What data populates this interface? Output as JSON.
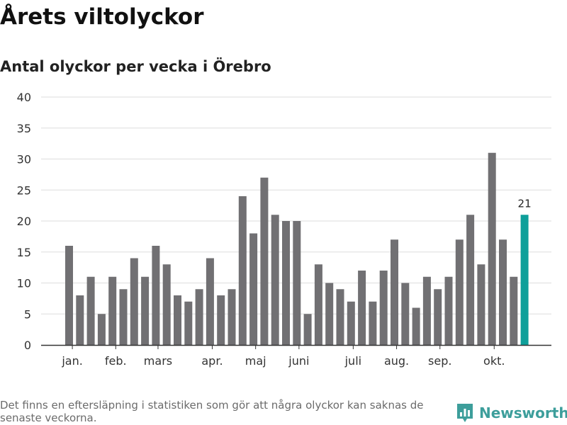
{
  "header": {
    "title": "Årets viltolyckor",
    "subtitle": "Antal olyckor per vecka i Örebro"
  },
  "footer": {
    "note": "Det finns en eftersläpning i statistiken som gör att några olyckor kan saknas de senaste veckorna.",
    "brand": "Newsworthy"
  },
  "colors": {
    "bar": "#717073",
    "highlight": "#0e9f9a",
    "grid": "#dddddd",
    "axis": "#333333",
    "brand": "#3d9e9b"
  },
  "chart_data": {
    "type": "bar",
    "title": "Antal olyckor per vecka i Örebro",
    "xlabel": "",
    "ylabel": "",
    "ylim": [
      0,
      40
    ],
    "yticks": [
      0,
      5,
      10,
      15,
      20,
      25,
      30,
      35,
      40
    ],
    "grid": true,
    "values": [
      16,
      8,
      11,
      5,
      11,
      9,
      14,
      11,
      16,
      13,
      8,
      7,
      9,
      14,
      8,
      9,
      24,
      18,
      27,
      21,
      20,
      20,
      5,
      13,
      10,
      9,
      7,
      12,
      7,
      12,
      17,
      10,
      6,
      11,
      9,
      11,
      17,
      21,
      13,
      31,
      17,
      11,
      21
    ],
    "highlight_index": 42,
    "highlight_label": "21",
    "month_labels": [
      {
        "label": "jan.",
        "bar_index": 0.3
      },
      {
        "label": "feb.",
        "bar_index": 4.3
      },
      {
        "label": "mars",
        "bar_index": 8.2
      },
      {
        "label": "apr.",
        "bar_index": 13.2
      },
      {
        "label": "maj",
        "bar_index": 17.2
      },
      {
        "label": "juni",
        "bar_index": 21.2
      },
      {
        "label": "juli",
        "bar_index": 26.2
      },
      {
        "label": "aug.",
        "bar_index": 30.2
      },
      {
        "label": "sep.",
        "bar_index": 34.2
      },
      {
        "label": "okt.",
        "bar_index": 39.2
      }
    ]
  }
}
